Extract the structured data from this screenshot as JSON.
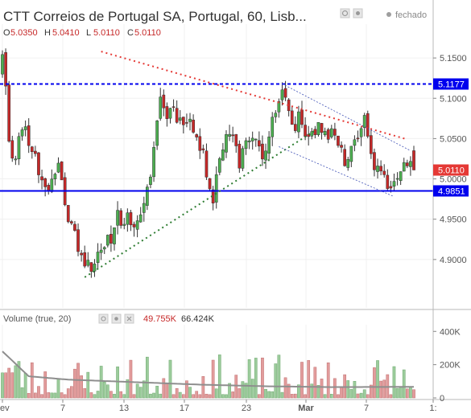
{
  "header": {
    "title": "CTT Correios de Portugal SA, Portugal, 60, Lisb...",
    "status": "fechado",
    "ohlc": [
      {
        "key": "O",
        "value": "5.0350"
      },
      {
        "key": "H",
        "value": "5.0410"
      },
      {
        "key": "L",
        "value": "5.0110"
      },
      {
        "key": "C",
        "value": "5.0110"
      }
    ]
  },
  "volume_legend": {
    "label": "Volume (true, 20)",
    "value1": "49.755K",
    "value2": "66.424K"
  },
  "colors": {
    "up": "#4caf50",
    "down": "#c62828",
    "price_line": "#0000ee",
    "resistance": "#e53935",
    "support": "#2e7d32",
    "channel": "#3f51b5",
    "volume_ma": "#8e8e8e"
  },
  "price_badges": {
    "top": "5.1177",
    "current": "5.0110",
    "bottom": "4.9851"
  },
  "chart_data": [
    {
      "type": "candlestick",
      "title": "CTT Correios de Portugal SA, Portugal, 60, Lisb...",
      "interval": "60",
      "x_ticks": [
        "ev",
        "7",
        "13",
        "17",
        "23",
        "Mar",
        "7",
        "1:"
      ],
      "y_ticks": [
        "5.1500",
        "5.1000",
        "5.0500",
        "5.0000",
        "4.9500",
        "4.9000"
      ],
      "ylim": [
        4.84,
        5.19
      ],
      "horizontal_lines": [
        5.1177,
        4.9851
      ],
      "trendlines": [
        {
          "name": "resistance",
          "style": "dotted",
          "from": [
            30,
            5.158
          ],
          "to": [
            123,
            5.049
          ]
        },
        {
          "name": "support",
          "style": "dotted",
          "from": [
            25,
            4.878
          ],
          "to": [
            95,
            5.06
          ]
        },
        {
          "name": "channel_upper",
          "style": "dotted",
          "from": [
            85,
            5.118
          ],
          "to": [
            124,
            5.035
          ]
        },
        {
          "name": "channel_lower",
          "style": "dotted",
          "from": [
            84,
            5.04
          ],
          "to": [
            119,
            4.978
          ]
        }
      ],
      "anchors": [
        [
          0,
          5.16
        ],
        [
          1,
          5.12
        ],
        [
          2,
          5.05
        ],
        [
          4,
          5.02
        ],
        [
          6,
          5.07
        ],
        [
          9,
          5.04
        ],
        [
          11,
          5.01
        ],
        [
          14,
          4.985
        ],
        [
          17,
          5.02
        ],
        [
          19,
          4.97
        ],
        [
          21,
          4.94
        ],
        [
          23,
          4.92
        ],
        [
          25,
          4.9
        ],
        [
          27,
          4.895
        ],
        [
          29,
          4.9
        ],
        [
          31,
          4.91
        ],
        [
          33,
          4.93
        ],
        [
          35,
          4.955
        ],
        [
          37,
          4.95
        ],
        [
          39,
          4.95
        ],
        [
          41,
          4.94
        ],
        [
          43,
          4.96
        ],
        [
          45,
          5.01
        ],
        [
          47,
          5.07
        ],
        [
          48,
          5.1
        ],
        [
          50,
          5.08
        ],
        [
          52,
          5.09
        ],
        [
          54,
          5.07
        ],
        [
          56,
          5.08
        ],
        [
          58,
          5.06
        ],
        [
          60,
          5.04
        ],
        [
          62,
          5.01
        ],
        [
          64,
          4.98
        ],
        [
          66,
          5.03
        ],
        [
          68,
          5.05
        ],
        [
          70,
          5.06
        ],
        [
          72,
          5.02
        ],
        [
          74,
          5.05
        ],
        [
          76,
          5.06
        ],
        [
          78,
          5.03
        ],
        [
          80,
          5.04
        ],
        [
          82,
          5.07
        ],
        [
          84,
          5.1
        ],
        [
          86,
          5.1
        ],
        [
          88,
          5.06
        ],
        [
          90,
          5.08
        ],
        [
          92,
          5.06
        ],
        [
          94,
          5.05
        ],
        [
          96,
          5.06
        ],
        [
          98,
          5.05
        ],
        [
          100,
          5.06
        ],
        [
          102,
          5.05
        ],
        [
          104,
          5.02
        ],
        [
          106,
          5.04
        ],
        [
          108,
          5.05
        ],
        [
          110,
          5.07
        ],
        [
          112,
          5.03
        ],
        [
          114,
          5.01
        ],
        [
          116,
          5.0
        ],
        [
          118,
          4.99
        ],
        [
          120,
          5.01
        ],
        [
          122,
          5.03
        ],
        [
          124,
          5.02
        ],
        [
          125,
          5.011
        ]
      ],
      "count": 126,
      "seed": 11
    },
    {
      "type": "bar",
      "title": "Volume (true, 20)",
      "y_ticks": [
        "400K",
        "200K",
        "0"
      ],
      "ylim": [
        0,
        440000
      ],
      "moving_average": {
        "period": 20,
        "anchors": [
          [
            0,
            280000
          ],
          [
            8,
            130000
          ],
          [
            20,
            110000
          ],
          [
            40,
            95000
          ],
          [
            60,
            80000
          ],
          [
            80,
            70000
          ],
          [
            100,
            65000
          ],
          [
            125,
            66424
          ]
        ]
      },
      "last_value": 49755,
      "count": 126,
      "seed": 23
    }
  ]
}
